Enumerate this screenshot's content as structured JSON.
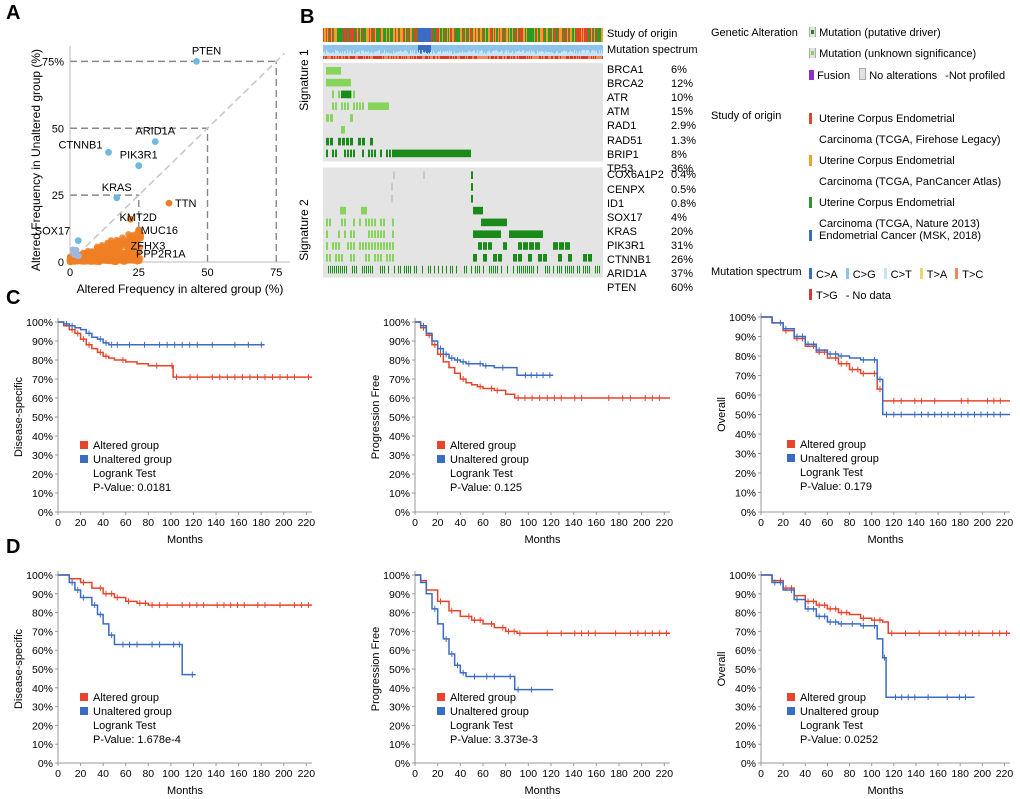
{
  "panels": {
    "A": "A",
    "B": "B",
    "C": "C",
    "D": "D"
  },
  "colors": {
    "altered": "#e8442a",
    "unaltered": "#3b6cc4",
    "scatter_orange": "#f07f24",
    "scatter_blue": "#6fb8e2",
    "mutation_driver": "#1a8a1a",
    "mutation_unknown": "#86d45a",
    "fusion": "#8b2fc9",
    "no_alt": "#e2e2e2",
    "study_firehose": "#e0442a",
    "study_pancancer": "#f3a126",
    "study_nature": "#2a9b2a",
    "study_msk": "#3b6cc4"
  },
  "chart_data": [
    {
      "id": "A",
      "type": "scatter",
      "xlabel": "Altered Frequency in altered group (%)",
      "ylabel": "Altered Frequency in Unaltered group (%)",
      "xlim": [
        0,
        80
      ],
      "ylim": [
        0,
        80
      ],
      "ticks": [
        0,
        25,
        50,
        75
      ],
      "tick_labels": [
        "0",
        "25",
        "50",
        "75"
      ],
      "ytick_labels": [
        "0",
        "25",
        "50",
        "75%"
      ],
      "highlighted_blue": [
        {
          "label": "PTEN",
          "x": 46,
          "y": 75
        },
        {
          "label": "ARID1A",
          "x": 31,
          "y": 45
        },
        {
          "label": "CTNNB1",
          "x": 14,
          "y": 41
        },
        {
          "label": "PIK3R1",
          "x": 25,
          "y": 36
        },
        {
          "label": "KRAS",
          "x": 17,
          "y": 24
        },
        {
          "label": "SOX17",
          "x": 3,
          "y": 8
        }
      ],
      "highlighted_orange": [
        {
          "label": "TTN",
          "x": 36,
          "y": 22
        },
        {
          "label": "KMT2D",
          "x": 22,
          "y": 16
        },
        {
          "label": "MUC16",
          "x": 25,
          "y": 12
        },
        {
          "label": "ZFHX3",
          "x": 22,
          "y": 7
        },
        {
          "label": "PPP2R1A",
          "x": 24,
          "y": 2
        }
      ]
    },
    {
      "id": "B",
      "type": "oncoprint",
      "header_tracks": [
        "Study of origin",
        "Mutation spectrum"
      ],
      "signature1_label": "Signature 1",
      "signature2_label": "Signature 2",
      "signature1": [
        {
          "gene": "BRCA1",
          "pct": "6%"
        },
        {
          "gene": "BRCA2",
          "pct": "12%"
        },
        {
          "gene": "ATR",
          "pct": "10%"
        },
        {
          "gene": "ATM",
          "pct": "15%"
        },
        {
          "gene": "RAD1",
          "pct": "2.9%"
        },
        {
          "gene": "RAD51",
          "pct": "1.3%"
        },
        {
          "gene": "BRIP1",
          "pct": "8%"
        },
        {
          "gene": "TP53",
          "pct": "36%"
        }
      ],
      "signature2": [
        {
          "gene": "COX6A1P2",
          "pct": "0.4%"
        },
        {
          "gene": "CENPX",
          "pct": "0.5%"
        },
        {
          "gene": "ID1",
          "pct": "0.8%"
        },
        {
          "gene": "SOX17",
          "pct": "4%"
        },
        {
          "gene": "KRAS",
          "pct": "20%"
        },
        {
          "gene": "PIK3R1",
          "pct": "31%"
        },
        {
          "gene": "CTNNB1",
          "pct": "26%"
        },
        {
          "gene": "ARID1A",
          "pct": "37%"
        },
        {
          "gene": "PTEN",
          "pct": "60%"
        }
      ]
    },
    {
      "id": "C1",
      "type": "line",
      "ylabel": "Disease-specific",
      "xlabel": "Months",
      "xlim": [
        0,
        225
      ],
      "ylim": [
        0,
        100
      ],
      "logrank": "Logrank Test",
      "pvalue": "P-Value: 0.0181",
      "series": [
        {
          "name": "Altered group",
          "x": [
            0,
            5,
            10,
            15,
            20,
            25,
            30,
            35,
            40,
            45,
            50,
            60,
            70,
            80,
            90,
            100,
            102,
            120,
            140,
            160,
            180,
            200,
            225
          ],
          "y": [
            100,
            98,
            96,
            94,
            91,
            88,
            86,
            84,
            82,
            81,
            80,
            79,
            78,
            77,
            77,
            77,
            71,
            71,
            71,
            71,
            71,
            71,
            71
          ]
        },
        {
          "name": "Unaltered group",
          "x": [
            0,
            5,
            10,
            15,
            20,
            25,
            30,
            35,
            40,
            45,
            50,
            60,
            80,
            100,
            120,
            140,
            160,
            183
          ],
          "y": [
            100,
            99,
            98,
            97,
            96,
            94,
            92,
            91,
            89,
            88,
            88,
            88,
            88,
            88,
            88,
            88,
            88,
            88
          ]
        }
      ]
    },
    {
      "id": "C2",
      "type": "line",
      "ylabel": "Progression Free",
      "xlabel": "Months",
      "xlim": [
        0,
        225
      ],
      "ylim": [
        0,
        100
      ],
      "logrank": "Logrank Test",
      "pvalue": "P-Value: 0.125",
      "series": [
        {
          "name": "Altered group",
          "x": [
            0,
            5,
            10,
            15,
            20,
            25,
            30,
            35,
            40,
            45,
            50,
            55,
            60,
            70,
            80,
            88,
            100,
            120,
            150,
            180,
            200,
            225
          ],
          "y": [
            100,
            97,
            93,
            88,
            83,
            79,
            76,
            73,
            70,
            68,
            67,
            66,
            65,
            64,
            62,
            60,
            60,
            60,
            60,
            60,
            60,
            60
          ]
        },
        {
          "name": "Unaltered group",
          "x": [
            0,
            5,
            10,
            15,
            20,
            25,
            30,
            35,
            40,
            45,
            50,
            60,
            70,
            80,
            90,
            100,
            110,
            122
          ],
          "y": [
            100,
            98,
            94,
            90,
            86,
            83,
            81,
            80,
            79,
            78,
            78,
            77,
            76,
            76,
            72,
            72,
            72,
            72
          ]
        }
      ]
    },
    {
      "id": "C3",
      "type": "line",
      "ylabel": "Overall",
      "xlabel": "Months",
      "xlim": [
        0,
        225
      ],
      "ylim": [
        0,
        100
      ],
      "logrank": "Logrank Test",
      "pvalue": "P-Value: 0.179",
      "series": [
        {
          "name": "Altered group",
          "x": [
            0,
            10,
            20,
            30,
            40,
            50,
            60,
            70,
            80,
            90,
            100,
            105,
            110,
            130,
            160,
            190,
            225
          ],
          "y": [
            100,
            97,
            93,
            89,
            85,
            82,
            79,
            76,
            73,
            71,
            71,
            63,
            57,
            57,
            57,
            57,
            57
          ]
        },
        {
          "name": "Unaltered group",
          "x": [
            0,
            10,
            20,
            30,
            40,
            50,
            60,
            70,
            80,
            90,
            100,
            105,
            110,
            130,
            160,
            190,
            225
          ],
          "y": [
            100,
            97,
            94,
            90,
            86,
            83,
            81,
            80,
            79,
            78,
            78,
            68,
            50,
            50,
            50,
            50,
            50
          ]
        }
      ]
    },
    {
      "id": "D1",
      "type": "line",
      "ylabel": "Disease-specific",
      "xlabel": "Months",
      "xlim": [
        0,
        225
      ],
      "ylim": [
        0,
        100
      ],
      "logrank": "Logrank Test",
      "pvalue": "P-Value: 1.678e-4",
      "series": [
        {
          "name": "Altered group",
          "x": [
            0,
            10,
            20,
            30,
            40,
            50,
            60,
            70,
            80,
            100,
            120,
            150,
            180,
            200,
            225
          ],
          "y": [
            100,
            98,
            96,
            93,
            90,
            88,
            86,
            85,
            84,
            84,
            84,
            84,
            84,
            84,
            84
          ]
        },
        {
          "name": "Unaltered group",
          "x": [
            0,
            10,
            15,
            20,
            30,
            35,
            40,
            45,
            50,
            60,
            80,
            100,
            110,
            122
          ],
          "y": [
            100,
            96,
            92,
            88,
            84,
            79,
            74,
            68,
            63,
            63,
            63,
            63,
            47,
            47
          ]
        }
      ]
    },
    {
      "id": "D2",
      "type": "line",
      "ylabel": "Progression Free",
      "xlabel": "Months",
      "xlim": [
        0,
        225
      ],
      "ylim": [
        0,
        100
      ],
      "logrank": "Logrank Test",
      "pvalue": "P-Value: 3.373e-3",
      "series": [
        {
          "name": "Altered group",
          "x": [
            0,
            5,
            10,
            20,
            30,
            40,
            50,
            60,
            70,
            80,
            90,
            100,
            120,
            150,
            180,
            200,
            225
          ],
          "y": [
            100,
            97,
            92,
            86,
            81,
            78,
            76,
            74,
            72,
            70,
            69,
            69,
            69,
            69,
            69,
            69,
            69
          ]
        },
        {
          "name": "Unaltered group",
          "x": [
            0,
            5,
            10,
            15,
            20,
            25,
            30,
            35,
            40,
            45,
            50,
            60,
            80,
            88,
            100,
            122
          ],
          "y": [
            100,
            96,
            90,
            82,
            74,
            66,
            58,
            52,
            48,
            46,
            46,
            46,
            46,
            39,
            39,
            39
          ]
        }
      ]
    },
    {
      "id": "D3",
      "type": "line",
      "ylabel": "Overall",
      "xlabel": "Months",
      "xlim": [
        0,
        225
      ],
      "ylim": [
        0,
        100
      ],
      "logrank": "Logrank Test",
      "pvalue": "P-Value: 0.0252",
      "series": [
        {
          "name": "Altered group",
          "x": [
            0,
            10,
            20,
            30,
            40,
            50,
            60,
            70,
            80,
            90,
            100,
            110,
            115,
            140,
            170,
            200,
            225
          ],
          "y": [
            100,
            97,
            93,
            89,
            86,
            84,
            82,
            80,
            79,
            77,
            76,
            75,
            69,
            69,
            69,
            69,
            69
          ]
        },
        {
          "name": "Unaltered group",
          "x": [
            0,
            10,
            20,
            30,
            40,
            50,
            60,
            70,
            80,
            90,
            100,
            105,
            110,
            113,
            130,
            160,
            193
          ],
          "y": [
            100,
            96,
            92,
            87,
            82,
            78,
            75,
            74,
            74,
            73,
            73,
            66,
            56,
            35,
            35,
            35,
            35
          ]
        }
      ]
    }
  ],
  "legend": {
    "genetic_alteration_title": "Genetic Alteration",
    "mut_driver": "Mutation (putative driver)",
    "mut_unknown": "Mutation (unknown significance)",
    "fusion": "Fusion",
    "no_alterations": "No alterations",
    "not_profiled": "Not profiled",
    "study_title": "Study of origin",
    "study1_a": "Uterine Corpus Endometrial",
    "study1_b": "Carcinoma (TCGA, Firehose Legacy)",
    "study2_a": "Uterine Corpus Endometrial",
    "study2_b": "Carcinoma (TCGA, PanCancer Atlas)",
    "study3_a": "Uterine Corpus Endometrial",
    "study3_b": "Carcinoma (TCGA, Nature 2013)",
    "study4": "Endometrial Cancer (MSK, 2018)",
    "spectrum_title": "Mutation spectrum",
    "spec": [
      "C>A",
      "C>G",
      "C>T",
      "T>A",
      "T>C",
      "T>G"
    ],
    "no_data": "No data",
    "spec_colors": [
      "#3b6cc4",
      "#8ec3ea",
      "#c7e3f4",
      "#f3d26b",
      "#f08a5d",
      "#d93a2b"
    ]
  },
  "km_legend": {
    "altered": "Altered group",
    "unaltered": "Unaltered group"
  }
}
